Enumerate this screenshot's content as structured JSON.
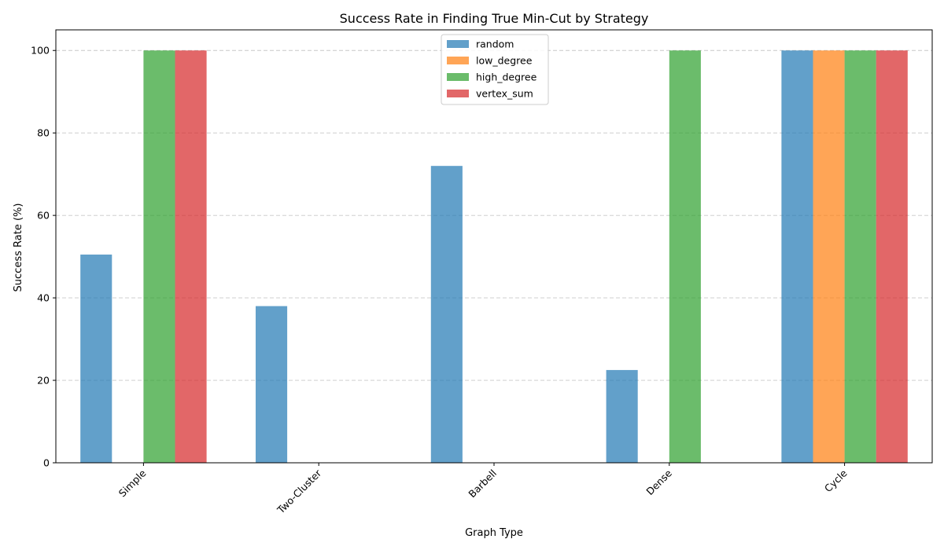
{
  "chart_data": {
    "type": "bar",
    "title": "Success Rate in Finding True Min-Cut by Strategy",
    "xlabel": "Graph Type",
    "ylabel": "Success Rate (%)",
    "categories": [
      "Simple",
      "Two-Cluster",
      "Barbell",
      "Dense",
      "Cycle"
    ],
    "ylim": [
      0,
      105
    ],
    "yticks": [
      0,
      20,
      40,
      60,
      80,
      100
    ],
    "grid": "y-dashed",
    "legend_position": "top-center",
    "series": [
      {
        "name": "random",
        "color": "#1f77b4",
        "values": [
          50.5,
          38,
          72,
          22.5,
          100
        ]
      },
      {
        "name": "low_degree",
        "color": "#ff7f0e",
        "values": [
          0,
          0,
          0,
          0,
          100
        ]
      },
      {
        "name": "high_degree",
        "color": "#2ca02c",
        "values": [
          100,
          0,
          0,
          100,
          100
        ]
      },
      {
        "name": "vertex_sum",
        "color": "#d62728",
        "values": [
          100,
          0,
          0,
          0,
          100
        ]
      }
    ]
  }
}
